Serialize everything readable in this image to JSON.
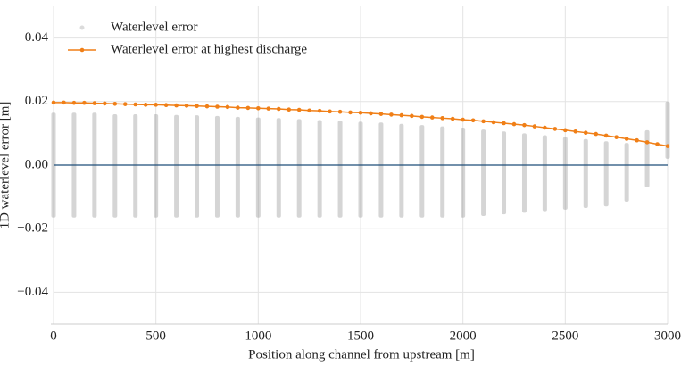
{
  "chart_data": {
    "type": "scatter-line",
    "xlabel": "Position along channel from upstream [m]",
    "ylabel": "1D waterlevel error [m]",
    "xlim": [
      0,
      3000
    ],
    "ylim": [
      -0.05,
      0.05
    ],
    "xticks": [
      0,
      500,
      1000,
      1500,
      2000,
      2500,
      3000
    ],
    "yticks": [
      {
        "value": -0.04,
        "label": "−0.04"
      },
      {
        "value": -0.02,
        "label": "−0.02"
      },
      {
        "value": 0,
        "label": "0.00"
      },
      0.02,
      0.04
    ],
    "grid": true,
    "legend": "upper left",
    "hline": 0,
    "hline_color": "#1f4e79",
    "series": [
      {
        "name": "Waterlevel error",
        "color": "#888888",
        "x": [
          0,
          100,
          200,
          300,
          400,
          500,
          600,
          700,
          800,
          900,
          1000,
          1100,
          1200,
          1300,
          1400,
          1500,
          1600,
          1700,
          1800,
          1900,
          2000,
          2100,
          2200,
          2300,
          2400,
          2500,
          2600,
          2700,
          2800,
          2900,
          3000
        ],
        "max": [
          0.0165,
          0.0165,
          0.0165,
          0.016,
          0.016,
          0.016,
          0.0158,
          0.0157,
          0.0155,
          0.0152,
          0.015,
          0.0148,
          0.0145,
          0.0142,
          0.014,
          0.0137,
          0.0134,
          0.013,
          0.0126,
          0.0122,
          0.0118,
          0.0112,
          0.0106,
          0.01,
          0.0094,
          0.0088,
          0.0082,
          0.0075,
          0.007,
          0.011,
          0.02
        ],
        "min": [
          -0.0165,
          -0.0165,
          -0.0165,
          -0.0165,
          -0.0165,
          -0.0165,
          -0.0165,
          -0.0165,
          -0.0165,
          -0.0165,
          -0.0165,
          -0.0165,
          -0.0165,
          -0.0165,
          -0.0165,
          -0.0165,
          -0.0165,
          -0.0165,
          -0.0165,
          -0.0165,
          -0.0165,
          -0.016,
          -0.0155,
          -0.015,
          -0.0145,
          -0.014,
          -0.0135,
          -0.013,
          -0.0115,
          -0.007,
          0.002
        ]
      },
      {
        "name": "Waterlevel error at highest discharge",
        "color": "#f07f17",
        "x": [
          0,
          50,
          100,
          150,
          200,
          250,
          300,
          350,
          400,
          450,
          500,
          550,
          600,
          650,
          700,
          750,
          800,
          850,
          900,
          950,
          1000,
          1050,
          1100,
          1150,
          1200,
          1250,
          1300,
          1350,
          1400,
          1450,
          1500,
          1550,
          1600,
          1650,
          1700,
          1750,
          1800,
          1850,
          1900,
          1950,
          2000,
          2050,
          2100,
          2150,
          2200,
          2250,
          2300,
          2350,
          2400,
          2450,
          2500,
          2550,
          2600,
          2650,
          2700,
          2750,
          2800,
          2850,
          2900,
          2950,
          3000
        ],
        "values": [
          0.0197,
          0.0197,
          0.0196,
          0.0196,
          0.0195,
          0.0194,
          0.0193,
          0.0192,
          0.0191,
          0.019,
          0.019,
          0.0189,
          0.0188,
          0.0187,
          0.0186,
          0.0185,
          0.0184,
          0.0183,
          0.0181,
          0.018,
          0.0179,
          0.0178,
          0.0177,
          0.0175,
          0.0174,
          0.0172,
          0.0171,
          0.0169,
          0.0168,
          0.0166,
          0.0165,
          0.0163,
          0.0161,
          0.0159,
          0.0157,
          0.0155,
          0.0152,
          0.015,
          0.0148,
          0.0146,
          0.0143,
          0.0141,
          0.0138,
          0.0135,
          0.0132,
          0.0129,
          0.0126,
          0.0122,
          0.0118,
          0.0114,
          0.011,
          0.0106,
          0.0102,
          0.0098,
          0.0093,
          0.0088,
          0.0083,
          0.0078,
          0.0072,
          0.0066,
          0.006
        ]
      }
    ]
  }
}
